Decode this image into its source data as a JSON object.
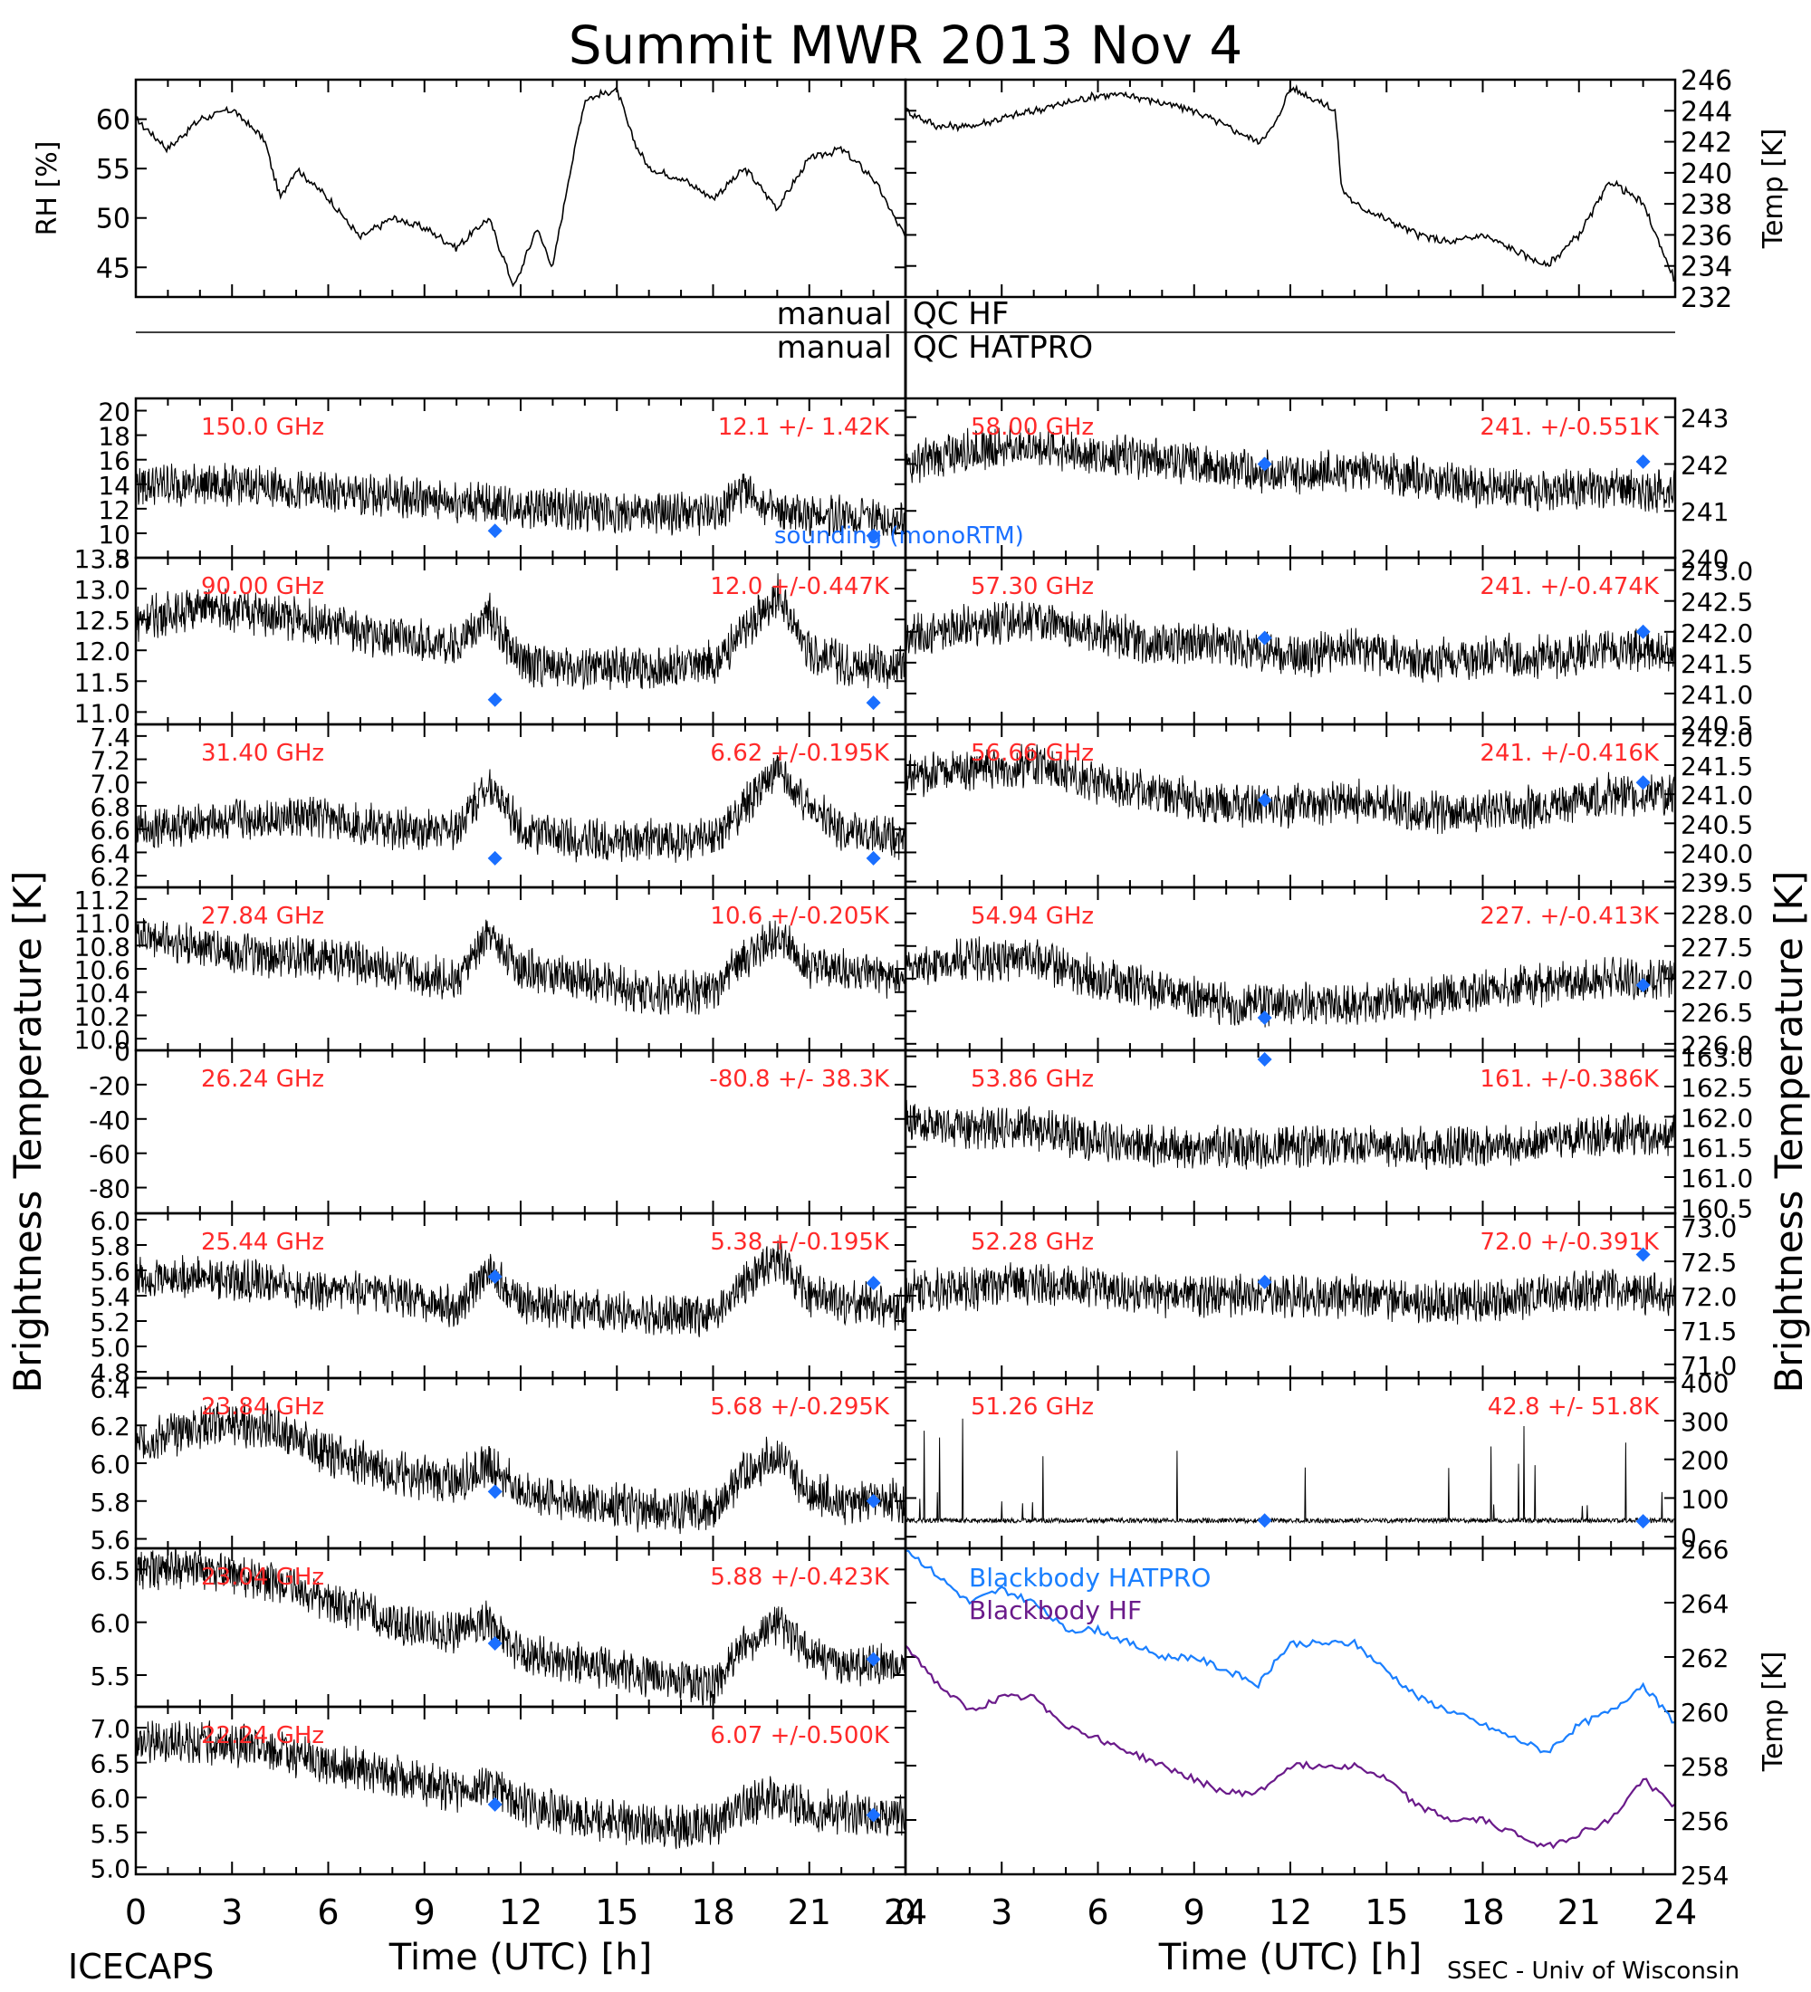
{
  "header": {
    "title": "Summit MWR 2013 Nov  4",
    "footer_left": "ICECAPS",
    "footer_right": "SSEC - Univ of Wisconsin",
    "ylabel_left": "Brightness Temperature [K]",
    "ylabel_right": "Brightness Temperature [K]",
    "xlabel": "Time (UTC) [h]",
    "x_ticks": [
      "0",
      "3",
      "6",
      "9",
      "12",
      "15",
      "18",
      "21",
      "24"
    ],
    "qc_left_1": "manual",
    "qc_right_1": "QC HF",
    "qc_left_2": "manual",
    "qc_right_2": "QC HATPRO",
    "sounding_label": "sounding (monoRTM)"
  },
  "colors": {
    "trace": "#000000",
    "label": "#ff2a2a",
    "sounding": "#1a6fff",
    "bb_hatpro": "#1a7fff",
    "bb_hf": "#6a1a8a"
  },
  "chart_data": [
    {
      "type": "line",
      "id": "rh",
      "ylabel": "RH [%]",
      "ylim": [
        42,
        64
      ],
      "yticks": [
        "45",
        "50",
        "55",
        "60"
      ],
      "xlim": [
        0,
        24
      ],
      "x": [
        0,
        1,
        2,
        3,
        4,
        4.5,
        5,
        6,
        7,
        8,
        9,
        10,
        11,
        11.8,
        12.5,
        13,
        13.5,
        14,
        15,
        15.5,
        16,
        17,
        18,
        19,
        20,
        21,
        22,
        23,
        24
      ],
      "y": [
        60,
        57,
        60,
        61,
        58,
        52,
        55,
        52,
        48,
        50,
        49,
        47,
        50,
        43,
        49,
        45,
        54,
        62,
        63,
        58,
        55,
        54,
        52,
        55,
        51,
        56,
        57,
        54,
        48
      ]
    },
    {
      "type": "line",
      "id": "temp",
      "ylabel": "Temp [K]",
      "ylim": [
        232,
        246
      ],
      "yticks": [
        "232",
        "234",
        "236",
        "238",
        "240",
        "242",
        "244",
        "246"
      ],
      "xlim": [
        0,
        24
      ],
      "x": [
        0,
        1,
        2,
        3,
        4,
        5,
        6,
        7,
        8,
        9,
        10,
        11,
        11.5,
        12,
        12.5,
        13,
        13.4,
        13.6,
        14,
        15,
        16,
        17,
        18,
        19,
        20,
        21,
        22,
        23,
        24
      ],
      "y": [
        244,
        243,
        243,
        243.5,
        244,
        244.5,
        245,
        245,
        244.5,
        244,
        243,
        242,
        243,
        245.5,
        245,
        244.5,
        244,
        239,
        238,
        237,
        236,
        235.5,
        236,
        235,
        234,
        236,
        239.5,
        238,
        233
      ]
    },
    {
      "type": "line",
      "channel": "150.0 GHz",
      "stats": "12.1 +/-  1.42K",
      "ylim": [
        8,
        21
      ],
      "yticks": [
        "8",
        "10",
        "12",
        "14",
        "16",
        "18",
        "20"
      ],
      "sounding": [
        {
          "x": 11.2,
          "y": 10.2
        },
        {
          "x": 23,
          "y": 9.8
        }
      ],
      "x": [
        0,
        2,
        4,
        6,
        8,
        10,
        12,
        14,
        16,
        18,
        19,
        20,
        22,
        24
      ],
      "y": [
        14,
        14,
        13.8,
        13.2,
        13,
        12.6,
        12.2,
        11.8,
        11.6,
        11.6,
        13.5,
        11.5,
        11.5,
        11
      ]
    },
    {
      "type": "line",
      "channel": "90.00 GHz",
      "stats": "12.0 +/-0.447K",
      "ylim": [
        10.8,
        13.5
      ],
      "yticks": [
        "11.0",
        "11.5",
        "12.0",
        "12.5",
        "13.0",
        "13.5"
      ],
      "sounding": [
        {
          "x": 11.2,
          "y": 11.2
        },
        {
          "x": 23,
          "y": 11.15
        }
      ],
      "x": [
        0,
        2,
        4,
        6,
        8,
        10,
        11,
        12,
        14,
        16,
        18,
        19,
        20,
        21,
        22,
        24
      ],
      "y": [
        12.5,
        12.7,
        12.6,
        12.4,
        12.2,
        12.1,
        12.6,
        11.8,
        11.7,
        11.7,
        11.8,
        12.3,
        12.9,
        12.0,
        11.8,
        11.7
      ]
    },
    {
      "type": "line",
      "channel": "31.40 GHz",
      "stats": "6.62 +/-0.195K",
      "ylim": [
        6.1,
        7.5
      ],
      "yticks": [
        "6.2",
        "6.4",
        "6.6",
        "6.8",
        "7.0",
        "7.2",
        "7.4"
      ],
      "sounding": [
        {
          "x": 11.2,
          "y": 6.35
        },
        {
          "x": 23,
          "y": 6.35
        }
      ],
      "x": [
        0,
        2,
        4,
        6,
        8,
        10,
        11,
        12,
        14,
        16,
        18,
        19,
        20,
        21,
        22,
        24
      ],
      "y": [
        6.6,
        6.65,
        6.7,
        6.7,
        6.6,
        6.6,
        7.0,
        6.6,
        6.5,
        6.5,
        6.5,
        6.8,
        7.1,
        6.8,
        6.6,
        6.5
      ]
    },
    {
      "type": "line",
      "channel": "27.84 GHz",
      "stats": "10.6 +/-0.205K",
      "ylim": [
        9.9,
        11.3
      ],
      "yticks": [
        "10.0",
        "10.2",
        "10.4",
        "10.6",
        "10.8",
        "11.0",
        "11.2"
      ],
      "sounding": [],
      "x": [
        0,
        2,
        4,
        6,
        8,
        10,
        11,
        12,
        14,
        16,
        18,
        19,
        20,
        21,
        22,
        24
      ],
      "y": [
        10.9,
        10.8,
        10.7,
        10.7,
        10.6,
        10.5,
        10.9,
        10.6,
        10.5,
        10.4,
        10.4,
        10.7,
        10.9,
        10.6,
        10.6,
        10.5
      ]
    },
    {
      "type": "line",
      "channel": "26.24 GHz",
      "stats": "-80.8 +/- 38.3K",
      "ylim": [
        -95,
        0
      ],
      "yticks": [
        "-80",
        "-60",
        "-40",
        "-20",
        "0"
      ],
      "sounding": [],
      "x": [],
      "y": []
    },
    {
      "type": "line",
      "channel": "25.44 GHz",
      "stats": "5.38 +/-0.195K",
      "ylim": [
        4.75,
        6.05
      ],
      "yticks": [
        "4.8",
        "5.0",
        "5.2",
        "5.4",
        "5.6",
        "5.8",
        "6.0"
      ],
      "sounding": [
        {
          "x": 11.2,
          "y": 5.55
        },
        {
          "x": 23,
          "y": 5.5
        }
      ],
      "x": [
        0,
        2,
        4,
        6,
        8,
        10,
        11,
        12,
        14,
        16,
        18,
        19,
        20,
        21,
        22,
        24
      ],
      "y": [
        5.55,
        5.55,
        5.5,
        5.45,
        5.4,
        5.3,
        5.6,
        5.35,
        5.3,
        5.25,
        5.25,
        5.5,
        5.7,
        5.4,
        5.35,
        5.3
      ]
    },
    {
      "type": "line",
      "channel": "23.84 GHz",
      "stats": "5.68 +/-0.295K",
      "ylim": [
        5.55,
        6.45
      ],
      "yticks": [
        "5.6",
        "5.8",
        "6.0",
        "6.2",
        "6.4"
      ],
      "sounding": [
        {
          "x": 11.2,
          "y": 5.85
        },
        {
          "x": 23,
          "y": 5.8
        }
      ],
      "x": [
        0,
        2,
        4,
        6,
        8,
        10,
        11,
        12,
        14,
        16,
        18,
        19,
        20,
        21,
        22,
        24
      ],
      "y": [
        6.1,
        6.2,
        6.2,
        6.05,
        5.95,
        5.9,
        6.0,
        5.85,
        5.8,
        5.75,
        5.75,
        5.95,
        6.05,
        5.85,
        5.8,
        5.8
      ]
    },
    {
      "type": "line",
      "channel": "23.04 GHz",
      "stats": "5.88 +/-0.423K",
      "ylim": [
        5.2,
        6.7
      ],
      "yticks": [
        "5.5",
        "6.0",
        "6.5"
      ],
      "sounding": [
        {
          "x": 11.2,
          "y": 5.8
        },
        {
          "x": 23,
          "y": 5.65
        }
      ],
      "x": [
        0,
        2,
        4,
        6,
        8,
        10,
        11,
        12,
        14,
        16,
        18,
        19,
        20,
        21,
        22,
        24
      ],
      "y": [
        6.5,
        6.5,
        6.4,
        6.2,
        6.0,
        5.9,
        6.0,
        5.7,
        5.6,
        5.5,
        5.4,
        5.8,
        6.0,
        5.7,
        5.6,
        5.6
      ]
    },
    {
      "type": "line",
      "channel": "22.24 GHz",
      "stats": "6.07 +/-0.500K",
      "ylim": [
        4.9,
        7.3
      ],
      "yticks": [
        "5.0",
        "5.5",
        "6.0",
        "6.5",
        "7.0"
      ],
      "sounding": [
        {
          "x": 11.2,
          "y": 5.9
        },
        {
          "x": 23,
          "y": 5.75
        }
      ],
      "x": [
        0,
        2,
        4,
        6,
        8,
        10,
        11,
        12,
        14,
        16,
        18,
        19,
        20,
        21,
        22,
        24
      ],
      "y": [
        6.8,
        6.8,
        6.7,
        6.5,
        6.3,
        6.1,
        6.2,
        5.9,
        5.7,
        5.6,
        5.6,
        5.9,
        6.0,
        5.8,
        5.8,
        5.7
      ]
    },
    {
      "type": "line",
      "channel": "58.00 GHz",
      "stats": "241. +/-0.551K",
      "ylim": [
        240,
        243.4
      ],
      "yticks": [
        "240",
        "241",
        "242",
        "243"
      ],
      "sounding": [
        {
          "x": 11.2,
          "y": 242
        },
        {
          "x": 23,
          "y": 242.05
        }
      ],
      "x": [
        0,
        2,
        4,
        6,
        8,
        10,
        12,
        14,
        16,
        18,
        20,
        22,
        24
      ],
      "y": [
        242,
        242.3,
        242.4,
        242.2,
        242.1,
        241.9,
        241.8,
        241.9,
        241.7,
        241.5,
        241.4,
        241.5,
        241.4
      ]
    },
    {
      "type": "line",
      "channel": "57.30 GHz",
      "stats": "241. +/-0.474K",
      "ylim": [
        240.5,
        243.2
      ],
      "yticks": [
        "240.5",
        "241.0",
        "241.5",
        "242.0",
        "242.5",
        "243.0"
      ],
      "sounding": [
        {
          "x": 11.2,
          "y": 241.9
        },
        {
          "x": 23,
          "y": 242
        }
      ],
      "x": [
        0,
        2,
        4,
        6,
        8,
        10,
        12,
        14,
        16,
        18,
        20,
        22,
        24
      ],
      "y": [
        241.9,
        242.1,
        242.2,
        242.0,
        241.8,
        241.8,
        241.6,
        241.7,
        241.5,
        241.6,
        241.6,
        241.7,
        241.7
      ]
    },
    {
      "type": "line",
      "channel": "56.66 GHz",
      "stats": "241. +/-0.416K",
      "ylim": [
        239.4,
        242.2
      ],
      "yticks": [
        "239.5",
        "240.0",
        "240.5",
        "241.0",
        "241.5",
        "242.0"
      ],
      "sounding": [
        {
          "x": 11.2,
          "y": 240.9
        },
        {
          "x": 23,
          "y": 241.2
        }
      ],
      "x": [
        0,
        2,
        4,
        6,
        8,
        10,
        12,
        14,
        16,
        18,
        20,
        22,
        24
      ],
      "y": [
        241.3,
        241.4,
        241.5,
        241.2,
        241.0,
        240.8,
        240.8,
        240.9,
        240.7,
        240.7,
        240.8,
        241.0,
        241.0
      ]
    },
    {
      "type": "line",
      "channel": "54.94 GHz",
      "stats": "227. +/-0.413K",
      "ylim": [
        225.9,
        228.4
      ],
      "yticks": [
        "226.0",
        "226.5",
        "227.0",
        "227.5",
        "228.0"
      ],
      "sounding": [
        {
          "x": 11.2,
          "y": 226.4
        },
        {
          "x": 23,
          "y": 226.9
        }
      ],
      "x": [
        0,
        2,
        4,
        6,
        8,
        10,
        12,
        14,
        16,
        18,
        20,
        22,
        24
      ],
      "y": [
        227.2,
        227.3,
        227.3,
        227.0,
        226.8,
        226.6,
        226.6,
        226.6,
        226.7,
        226.8,
        226.9,
        227.0,
        227.0
      ]
    },
    {
      "type": "line",
      "channel": "53.86 GHz",
      "stats": "161. +/-0.386K",
      "ylim": [
        160.4,
        163.1
      ],
      "yticks": [
        "160.5",
        "161.0",
        "161.5",
        "162.0",
        "162.5",
        "163.0"
      ],
      "sounding": [
        {
          "x": 11.2,
          "y": 162.95
        }
      ],
      "x": [
        0,
        2,
        4,
        6,
        8,
        10,
        12,
        14,
        16,
        18,
        20,
        22,
        24
      ],
      "y": [
        161.9,
        161.8,
        161.8,
        161.6,
        161.5,
        161.5,
        161.5,
        161.5,
        161.5,
        161.5,
        161.6,
        161.7,
        161.7
      ]
    },
    {
      "type": "line",
      "channel": "52.28 GHz",
      "stats": "72.0 +/-0.391K",
      "ylim": [
        70.8,
        73.2
      ],
      "yticks": [
        "71.0",
        "71.5",
        "72.0",
        "72.5",
        "73.0"
      ],
      "sounding": [
        {
          "x": 11.2,
          "y": 72.2
        },
        {
          "x": 23,
          "y": 72.6
        }
      ],
      "x": [
        0,
        2,
        4,
        6,
        8,
        10,
        12,
        14,
        16,
        18,
        20,
        22,
        24
      ],
      "y": [
        72.1,
        72.1,
        72.2,
        72.1,
        72.0,
        72.0,
        72.0,
        72.0,
        71.9,
        71.9,
        72.0,
        72.1,
        72.0
      ]
    },
    {
      "type": "line",
      "channel": "51.26 GHz",
      "stats": "42.8 +/- 51.8K",
      "ylim": [
        -30,
        410
      ],
      "yticks": [
        "0",
        "100",
        "200",
        "300",
        "400"
      ],
      "sounding": [
        {
          "x": 11.2,
          "y": 42
        },
        {
          "x": 23,
          "y": 40
        }
      ],
      "x": [
        0,
        4,
        8,
        12,
        16,
        20,
        24
      ],
      "y": [
        42,
        42,
        43,
        42,
        42,
        43,
        42
      ]
    },
    {
      "type": "line",
      "id": "blackbody",
      "ylabel": "Temp [K]",
      "ylim": [
        254,
        266
      ],
      "yticks": [
        "254",
        "256",
        "258",
        "260",
        "262",
        "264",
        "266"
      ],
      "series": [
        {
          "name": "Blackbody HATPRO",
          "x": [
            0,
            1,
            2,
            3,
            4,
            5,
            6,
            7,
            8,
            9,
            10,
            11,
            12,
            13,
            14,
            15,
            16,
            17,
            18,
            19,
            20,
            21,
            22,
            23,
            24
          ],
          "y": [
            266,
            265,
            264,
            264.5,
            264,
            263,
            263,
            262.5,
            262,
            262,
            261.5,
            261,
            262.5,
            262.5,
            262.5,
            261.5,
            260.5,
            260,
            259.5,
            259,
            258.5,
            259.5,
            260,
            261,
            259.5
          ]
        },
        {
          "name": "Blackbody HF",
          "x": [
            0,
            1,
            2,
            3,
            4,
            5,
            6,
            7,
            8,
            9,
            10,
            11,
            12,
            13,
            14,
            15,
            16,
            17,
            18,
            19,
            20,
            21,
            22,
            23,
            24
          ],
          "y": [
            262.5,
            261,
            260,
            260.5,
            260.5,
            259.5,
            259,
            258.5,
            258,
            257.5,
            257,
            257,
            258,
            258,
            258,
            257.5,
            256.5,
            256,
            256,
            255.5,
            255,
            255.5,
            256,
            257.5,
            256.5
          ]
        }
      ]
    }
  ]
}
